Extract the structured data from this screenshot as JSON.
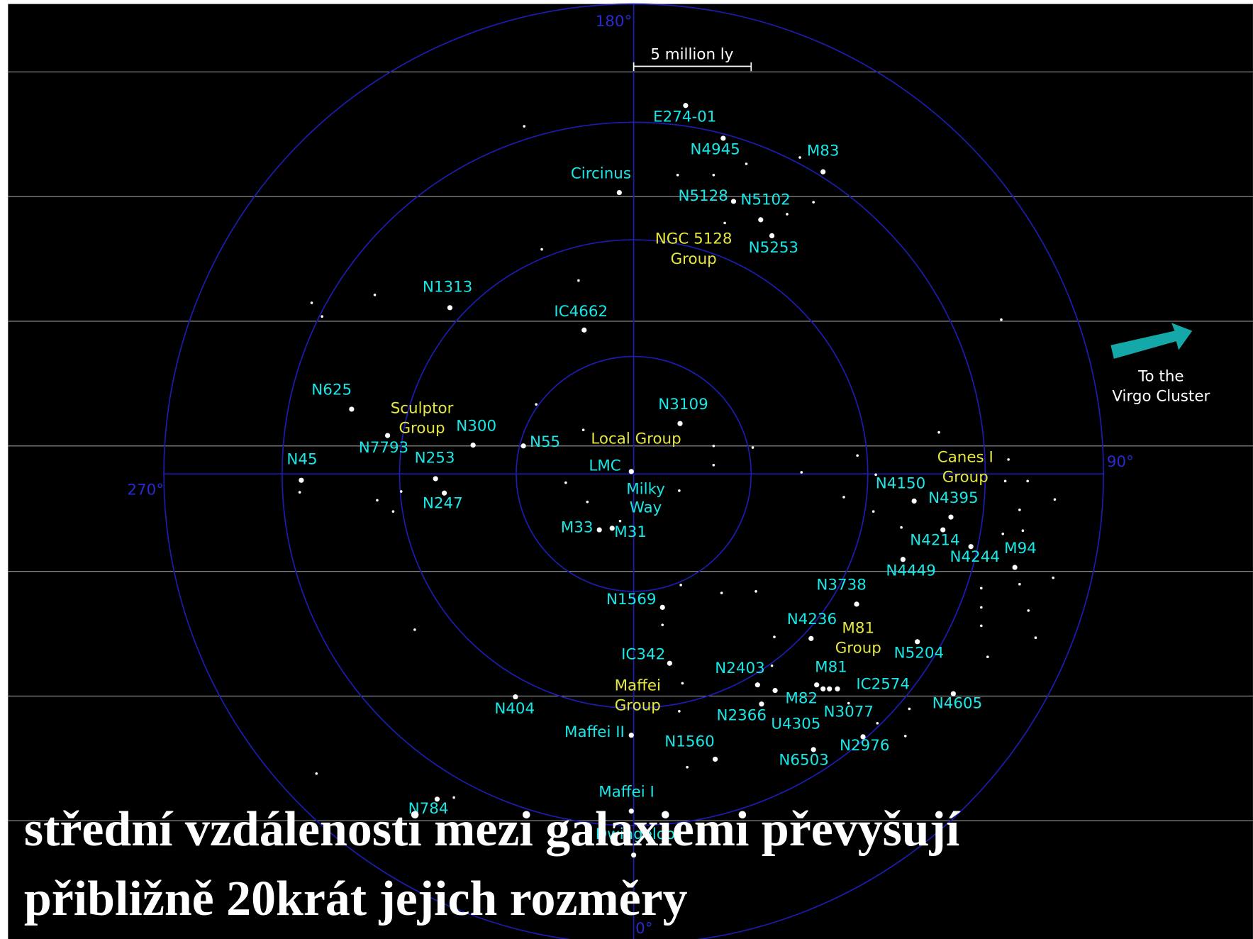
{
  "scale_label": "5 million ly",
  "degree_labels": [
    "180°",
    "270°",
    "90°",
    "0°"
  ],
  "galaxies": [
    "E274-01",
    "N4945",
    "M83",
    "Circinus",
    "N5128",
    "N5102",
    "N5253",
    "N1313",
    "IC4662",
    "N625",
    "N3109",
    "N300",
    "N55",
    "N7793",
    "N45",
    "N253",
    "LMC",
    "N247",
    "N4150",
    "N4395",
    "M33",
    "M31",
    "N4214",
    "N4244",
    "M94",
    "N4449",
    "N3738",
    "N1569",
    "N4236",
    "N5204",
    "IC342",
    "N2403",
    "M81",
    "IC2574",
    "M82",
    "N3077",
    "U4305",
    "N4605",
    "N404",
    "N2366",
    "Maffei II",
    "N1560",
    "N2976",
    "N6503",
    "Maffei I",
    "N784",
    "Dwingeloo"
  ],
  "groups": [
    [
      "NGC 5128",
      "Group"
    ],
    [
      "Sculptor",
      "Group"
    ],
    [
      "Local Group"
    ],
    [
      "Canes I",
      "Group"
    ],
    [
      "M81",
      "Group"
    ],
    [
      "Maffei",
      "Group"
    ]
  ],
  "milky_way": [
    "Milky",
    "Way"
  ],
  "direction": [
    "To the",
    "Virgo Cluster"
  ],
  "caption": [
    "střední vzdálenosti mezi galaxiemi převyšují",
    "přibližně 20krát jejich rozměry"
  ]
}
